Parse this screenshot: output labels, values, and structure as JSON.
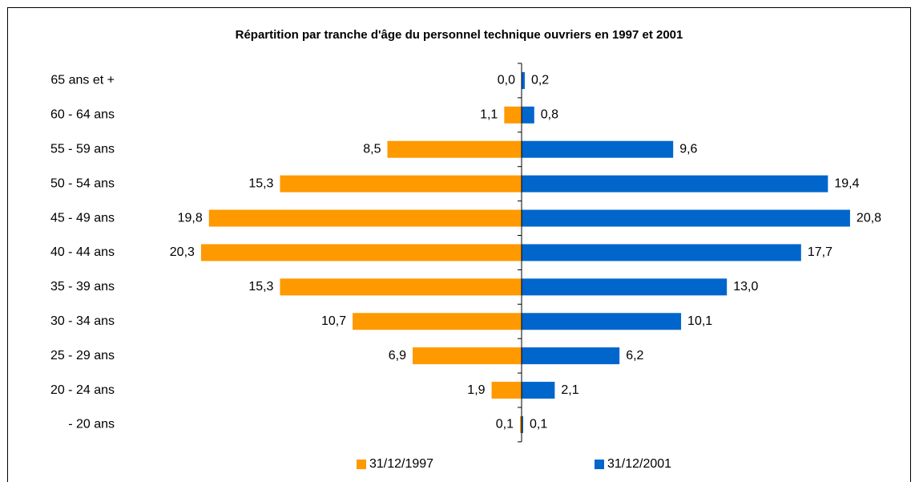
{
  "chart_data": {
    "type": "pyramid",
    "title": "Répartition par tranche d'âge du personnel technique ouvriers en 1997 et 2001",
    "categories": [
      "65 ans et +",
      "60 - 64 ans",
      "55 - 59 ans",
      "50 - 54 ans",
      "45 - 49 ans",
      "40 - 44 ans",
      "35 - 39 ans",
      "30 - 34 ans",
      "25 - 29 ans",
      "20 - 24 ans",
      "- 20 ans"
    ],
    "series": [
      {
        "name": "31/12/1997",
        "color": "#ff9900",
        "values": [
          0.0,
          1.1,
          8.5,
          15.3,
          19.8,
          20.3,
          15.3,
          10.7,
          6.9,
          1.9,
          0.1
        ],
        "value_labels": [
          "0,0",
          "1,1",
          "8,5",
          "15,3",
          "19,8",
          "20,3",
          "15,3",
          "10,7",
          "6,9",
          "1,9",
          "0,1"
        ]
      },
      {
        "name": "31/12/2001",
        "color": "#0066cc",
        "values": [
          0.2,
          0.8,
          9.6,
          19.4,
          20.8,
          17.7,
          13.0,
          10.1,
          6.2,
          2.1,
          0.1
        ],
        "value_labels": [
          "0,2",
          "0,8",
          "9,6",
          "19,4",
          "20,8",
          "17,7",
          "13,0",
          "10,1",
          "6,2",
          "2,1",
          "0,1"
        ]
      }
    ],
    "xlim": [
      0,
      24
    ],
    "legend": "bottom"
  }
}
